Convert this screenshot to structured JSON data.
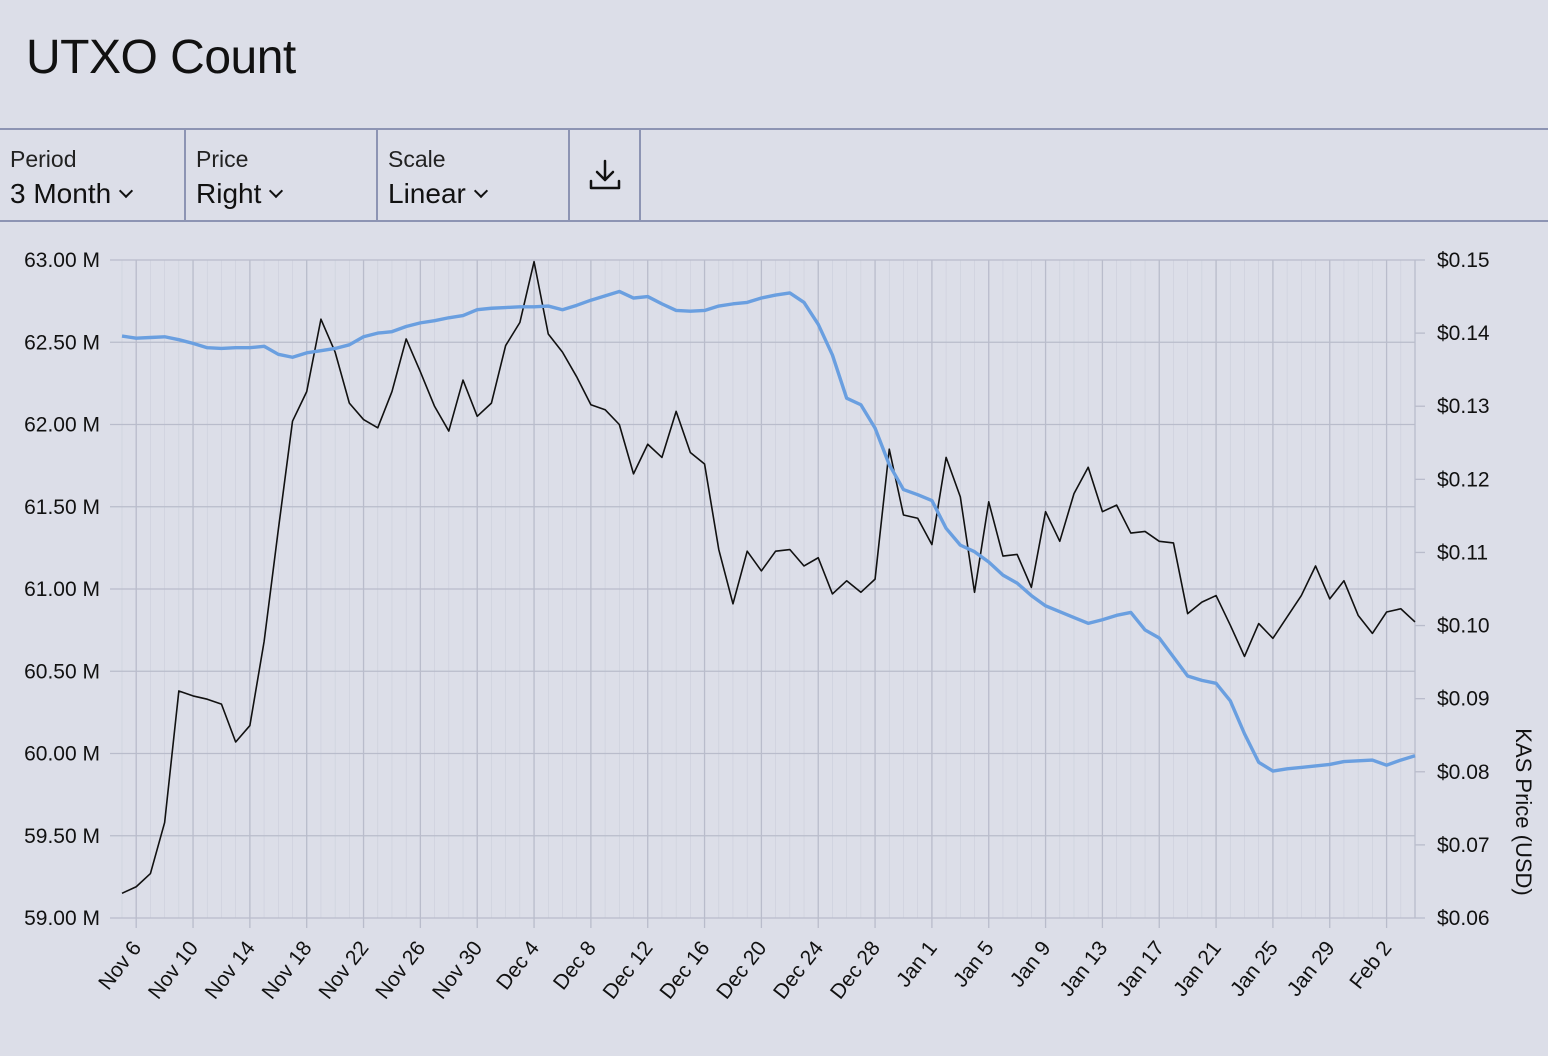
{
  "header": {
    "title": "UTXO Count"
  },
  "toolbar": {
    "period": {
      "label": "Period",
      "value": "3 Month"
    },
    "price": {
      "label": "Price",
      "value": "Right"
    },
    "scale": {
      "label": "Scale",
      "value": "Linear"
    },
    "download_icon": "download-icon"
  },
  "colors": {
    "utxo": "#111111",
    "price": "#6a9fe0",
    "grid": "#b9bccb",
    "background": "#dcdee8"
  },
  "chart_data": {
    "type": "line",
    "title": "UTXO Count",
    "ylabel": "",
    "y2label": "KAS Price (USD)",
    "ylim": [
      59000000,
      63000000
    ],
    "y2lim": [
      0.06,
      0.15
    ],
    "grid": true,
    "x_start": "Nov 5",
    "x_ticks": [
      "Nov 6",
      "Nov 10",
      "Nov 14",
      "Nov 18",
      "Nov 22",
      "Nov 26",
      "Nov 30",
      "Dec 4",
      "Dec 8",
      "Dec 12",
      "Dec 16",
      "Dec 20",
      "Dec 24",
      "Dec 28",
      "Jan 1",
      "Jan 5",
      "Jan 9",
      "Jan 13",
      "Jan 17",
      "Jan 21",
      "Jan 25",
      "Jan 29",
      "Feb 2"
    ],
    "y_ticks": [
      "59.00 M",
      "59.50 M",
      "60.00 M",
      "60.50 M",
      "61.00 M",
      "61.50 M",
      "62.00 M",
      "62.50 M",
      "63.00 M"
    ],
    "y2_ticks": [
      "$0.06",
      "$0.07",
      "$0.08",
      "$0.09",
      "$0.10",
      "$0.11",
      "$0.12",
      "$0.13",
      "$0.14",
      "$0.15"
    ],
    "series": [
      {
        "name": "UTXO Count",
        "axis": "left",
        "values": [
          59.15,
          59.19,
          59.27,
          59.58,
          60.38,
          60.35,
          60.33,
          60.3,
          60.07,
          60.17,
          60.68,
          61.36,
          62.02,
          62.2,
          62.64,
          62.44,
          62.13,
          62.03,
          61.98,
          62.2,
          62.52,
          62.32,
          62.11,
          61.96,
          62.27,
          62.05,
          62.13,
          62.48,
          62.62,
          62.99,
          62.55,
          62.44,
          62.29,
          62.12,
          62.09,
          62.0,
          61.7,
          61.88,
          61.8,
          62.08,
          61.83,
          61.76,
          61.24,
          60.91,
          61.23,
          61.11,
          61.23,
          61.24,
          61.14,
          61.19,
          60.97,
          61.05,
          60.98,
          61.06,
          61.85,
          61.45,
          61.43,
          61.27,
          61.8,
          61.56,
          60.98,
          61.53,
          61.2,
          61.21,
          61.01,
          61.47,
          61.29,
          61.58,
          61.74,
          61.47,
          61.51,
          61.34,
          61.35,
          61.29,
          61.28,
          60.85,
          60.92,
          60.96,
          60.78,
          60.59,
          60.79,
          60.7,
          60.83,
          60.96,
          61.14,
          60.94,
          61.05,
          60.84,
          60.73,
          60.86,
          60.88,
          60.8
        ]
      },
      {
        "name": "KAS Price (USD)",
        "axis": "right",
        "values": [
          0.1396,
          0.1393,
          0.1394,
          0.1395,
          0.1391,
          0.1386,
          0.138,
          0.1379,
          0.138,
          0.138,
          0.1382,
          0.1371,
          0.1367,
          0.1373,
          0.1376,
          0.1379,
          0.1384,
          0.1395,
          0.14,
          0.1402,
          0.1409,
          0.1414,
          0.1417,
          0.1421,
          0.1424,
          0.1432,
          0.1434,
          0.1435,
          0.1436,
          0.1436,
          0.1437,
          0.1432,
          0.1438,
          0.1445,
          0.1451,
          0.1457,
          0.1448,
          0.145,
          0.144,
          0.1431,
          0.143,
          0.1431,
          0.1437,
          0.144,
          0.1442,
          0.1448,
          0.1452,
          0.1455,
          0.1442,
          0.1412,
          0.137,
          0.1311,
          0.1302,
          0.127,
          0.122,
          0.1186,
          0.1179,
          0.1171,
          0.1133,
          0.111,
          0.1101,
          0.1087,
          0.1069,
          0.1058,
          0.1041,
          0.1027,
          0.1019,
          0.1011,
          0.1003,
          0.1008,
          0.1014,
          0.1018,
          0.0994,
          0.0983,
          0.0957,
          0.0931,
          0.0925,
          0.0921,
          0.0897,
          0.0852,
          0.0813,
          0.0801,
          0.0804,
          0.0806,
          0.0808,
          0.081,
          0.0814,
          0.0815,
          0.0816,
          0.0809,
          0.0816,
          0.0822
        ]
      }
    ]
  }
}
